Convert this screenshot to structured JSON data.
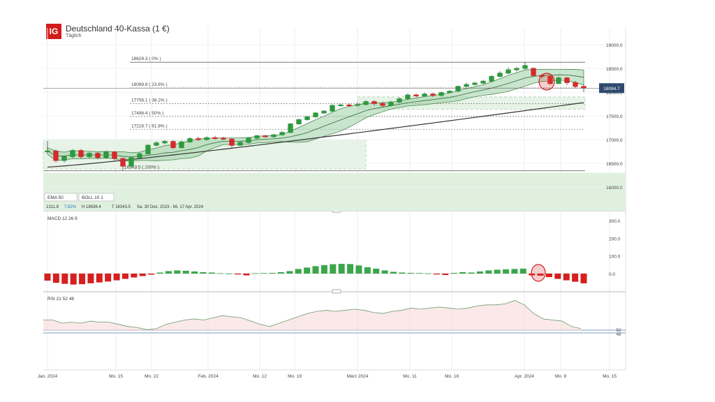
{
  "header": {
    "logo_text": "IG",
    "title": "Deutschland 40-Kassa (1 €)",
    "subtitle": "Täglich"
  },
  "chart_data": [
    {
      "type": "candlestick",
      "panel": "price",
      "ylim": [
        16000,
        19000
      ],
      "y_ticks": [
        "19000.0",
        "18500.0",
        "18000.0",
        "17500.0",
        "17000.0",
        "16500.0",
        "16000.0"
      ],
      "last_price_label": "18084.7",
      "fibonacci": [
        {
          "label": "18629.3 ( 0% )",
          "value": 18629.3
        },
        {
          "label": "18089.8 ( 23.6% )",
          "value": 18089.8
        },
        {
          "label": "17756.1 ( 38.2% )",
          "value": 17756.1
        },
        {
          "label": "17486.4 ( 50% )",
          "value": 17486.4
        },
        {
          "label": "17216.7 ( 61.8% )",
          "value": 17216.7
        },
        {
          "label": "16343.5 ( 100% )",
          "value": 16343.5
        }
      ],
      "indicator_labels": {
        "ema": "EMA 50",
        "boll": "BOLL 10 1",
        "stat_left": "1311.8",
        "stat_pct": "7.82%",
        "stat_high": "H 18638.4",
        "stat_low": "T 16343.5",
        "stat_range": "Sa. 30 Dez. 2023 - Mi. 17 Apr. 2024"
      },
      "candles": [
        {
          "o": 16760,
          "c": 16760,
          "h": 16970,
          "l": 16720
        },
        {
          "o": 16760,
          "c": 16560,
          "h": 16790,
          "l": 16520
        },
        {
          "o": 16560,
          "c": 16640,
          "h": 16660,
          "l": 16520
        },
        {
          "o": 16640,
          "c": 16770,
          "h": 16800,
          "l": 16610
        },
        {
          "o": 16770,
          "c": 16640,
          "h": 16800,
          "l": 16600
        },
        {
          "o": 16640,
          "c": 16710,
          "h": 16740,
          "l": 16600
        },
        {
          "o": 16710,
          "c": 16620,
          "h": 16740,
          "l": 16590
        },
        {
          "o": 16620,
          "c": 16740,
          "h": 16760,
          "l": 16600
        },
        {
          "o": 16740,
          "c": 16600,
          "h": 16760,
          "l": 16560
        },
        {
          "o": 16600,
          "c": 16440,
          "h": 16620,
          "l": 16343.5
        },
        {
          "o": 16440,
          "c": 16620,
          "h": 16640,
          "l": 16420
        },
        {
          "o": 16620,
          "c": 16700,
          "h": 16730,
          "l": 16600
        },
        {
          "o": 16700,
          "c": 16880,
          "h": 16900,
          "l": 16690
        },
        {
          "o": 16880,
          "c": 16930,
          "h": 16960,
          "l": 16860
        },
        {
          "o": 16930,
          "c": 16960,
          "h": 16990,
          "l": 16900
        },
        {
          "o": 16960,
          "c": 16830,
          "h": 16990,
          "l": 16800
        },
        {
          "o": 16830,
          "c": 16950,
          "h": 16980,
          "l": 16810
        },
        {
          "o": 16950,
          "c": 17020,
          "h": 17050,
          "l": 16930
        },
        {
          "o": 17020,
          "c": 17000,
          "h": 17060,
          "l": 16970
        },
        {
          "o": 17000,
          "c": 17040,
          "h": 17070,
          "l": 16980
        },
        {
          "o": 17040,
          "c": 17030,
          "h": 17080,
          "l": 17000
        },
        {
          "o": 17030,
          "c": 17010,
          "h": 17060,
          "l": 16990
        },
        {
          "o": 17010,
          "c": 16880,
          "h": 17030,
          "l": 16830
        },
        {
          "o": 16880,
          "c": 16940,
          "h": 16960,
          "l": 16860
        },
        {
          "o": 16940,
          "c": 17030,
          "h": 17050,
          "l": 16920
        },
        {
          "o": 17030,
          "c": 17080,
          "h": 17100,
          "l": 17010
        },
        {
          "o": 17080,
          "c": 17060,
          "h": 17100,
          "l": 17040
        },
        {
          "o": 17060,
          "c": 17100,
          "h": 17120,
          "l": 17040
        },
        {
          "o": 17100,
          "c": 17150,
          "h": 17180,
          "l": 17080
        },
        {
          "o": 17150,
          "c": 17330,
          "h": 17350,
          "l": 17140
        },
        {
          "o": 17330,
          "c": 17420,
          "h": 17440,
          "l": 17320
        },
        {
          "o": 17420,
          "c": 17480,
          "h": 17500,
          "l": 17400
        },
        {
          "o": 17480,
          "c": 17560,
          "h": 17580,
          "l": 17460
        },
        {
          "o": 17560,
          "c": 17600,
          "h": 17620,
          "l": 17540
        },
        {
          "o": 17600,
          "c": 17720,
          "h": 17740,
          "l": 17580
        },
        {
          "o": 17720,
          "c": 17730,
          "h": 17760,
          "l": 17700
        },
        {
          "o": 17730,
          "c": 17720,
          "h": 17760,
          "l": 17690
        },
        {
          "o": 17720,
          "c": 17740,
          "h": 17780,
          "l": 17700
        },
        {
          "o": 17740,
          "c": 17800,
          "h": 17830,
          "l": 17720
        },
        {
          "o": 17800,
          "c": 17760,
          "h": 17830,
          "l": 17720
        },
        {
          "o": 17760,
          "c": 17720,
          "h": 17800,
          "l": 17680
        },
        {
          "o": 17720,
          "c": 17790,
          "h": 17820,
          "l": 17700
        },
        {
          "o": 17790,
          "c": 17860,
          "h": 17890,
          "l": 17770
        },
        {
          "o": 17860,
          "c": 17940,
          "h": 17970,
          "l": 17840
        },
        {
          "o": 17940,
          "c": 17920,
          "h": 17970,
          "l": 17890
        },
        {
          "o": 17920,
          "c": 17960,
          "h": 17990,
          "l": 17900
        },
        {
          "o": 17960,
          "c": 17930,
          "h": 17990,
          "l": 17900
        },
        {
          "o": 17930,
          "c": 17990,
          "h": 18010,
          "l": 17910
        },
        {
          "o": 17990,
          "c": 18020,
          "h": 18040,
          "l": 17970
        },
        {
          "o": 18020,
          "c": 18120,
          "h": 18140,
          "l": 18000
        },
        {
          "o": 18120,
          "c": 18160,
          "h": 18200,
          "l": 18100
        },
        {
          "o": 18160,
          "c": 18190,
          "h": 18220,
          "l": 18140
        },
        {
          "o": 18190,
          "c": 18230,
          "h": 18260,
          "l": 18170
        },
        {
          "o": 18230,
          "c": 18330,
          "h": 18360,
          "l": 18210
        },
        {
          "o": 18330,
          "c": 18400,
          "h": 18440,
          "l": 18310
        },
        {
          "o": 18400,
          "c": 18470,
          "h": 18520,
          "l": 18380
        },
        {
          "o": 18470,
          "c": 18500,
          "h": 18530,
          "l": 18440
        },
        {
          "o": 18500,
          "c": 18560,
          "h": 18638.4,
          "l": 18480
        },
        {
          "o": 18500,
          "c": 18350,
          "h": 18520,
          "l": 18320
        },
        {
          "o": 18350,
          "c": 18330,
          "h": 18380,
          "l": 18290
        },
        {
          "o": 18330,
          "c": 18180,
          "h": 18350,
          "l": 18150
        },
        {
          "o": 18180,
          "c": 18300,
          "h": 18330,
          "l": 18170
        },
        {
          "o": 18300,
          "c": 18200,
          "h": 18320,
          "l": 18150
        },
        {
          "o": 18200,
          "c": 18120,
          "h": 18240,
          "l": 18080
        },
        {
          "o": 18120,
          "c": 18084.7,
          "h": 18160,
          "l": 18000
        }
      ],
      "x_ticks": [
        "Jan. 2024",
        "Mo. 15",
        "Mo. 22",
        "Feb. 2024",
        "Mo. 12",
        "Mo. 19",
        "März 2024",
        "Mo. 11",
        "Mo. 18",
        "Apr. 2024",
        "Mo. 8",
        "Mo. 15"
      ]
    },
    {
      "type": "bar",
      "panel": "macd",
      "label": "MACD 12 26 9",
      "ylim": [
        -80,
        320
      ],
      "y_ticks": [
        "300.0",
        "200.0",
        "100.0",
        "0.0"
      ],
      "values": [
        -40,
        -52,
        -58,
        -62,
        -60,
        -55,
        -50,
        -45,
        -38,
        -30,
        -22,
        -14,
        -6,
        6,
        14,
        18,
        16,
        12,
        8,
        6,
        2,
        0,
        -5,
        -10,
        2,
        3,
        4,
        8,
        14,
        26,
        34,
        42,
        48,
        53,
        55,
        54,
        46,
        36,
        28,
        18,
        10,
        6,
        4,
        3,
        1,
        -5,
        -8,
        4,
        8,
        6,
        12,
        18,
        22,
        24,
        26,
        28,
        -10,
        -12,
        -20,
        -30,
        -38,
        -46,
        -55
      ],
      "positive_color": "#3aa64a",
      "negative_color": "#d61f1f"
    },
    {
      "type": "line",
      "panel": "rsi",
      "label": "RSI 21 52 48",
      "ylim": [
        0,
        100
      ],
      "right_labels": [
        "52",
        "48"
      ],
      "values": [
        58,
        58,
        55,
        56,
        55,
        57,
        56,
        56,
        54,
        52,
        51,
        49,
        50,
        54,
        56,
        58,
        59,
        58,
        60,
        62,
        61,
        60,
        57,
        54,
        52,
        55,
        58,
        61,
        64,
        66,
        67,
        66,
        67,
        68,
        67,
        65,
        64,
        66,
        67,
        69,
        68,
        69,
        70,
        69,
        68,
        69,
        71,
        72,
        72,
        73,
        76,
        72,
        64,
        59,
        58,
        57,
        52,
        50
      ]
    }
  ]
}
